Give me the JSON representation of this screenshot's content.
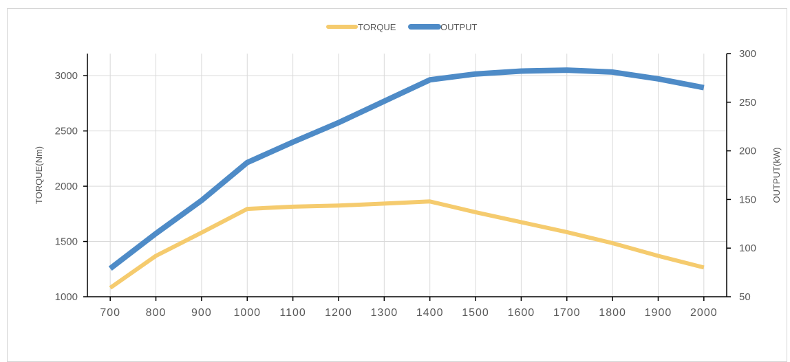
{
  "chart_data": {
    "type": "line",
    "x": [
      700,
      800,
      900,
      1000,
      1100,
      1200,
      1300,
      1400,
      1500,
      1600,
      1700,
      1800,
      1900,
      2000
    ],
    "xlim": [
      650,
      2050
    ],
    "xticks": [
      700,
      800,
      900,
      1000,
      1100,
      1200,
      1300,
      1400,
      1500,
      1600,
      1700,
      1800,
      1900,
      2000
    ],
    "xlabel": "",
    "y_left": {
      "label": "TORQUE(Nm)",
      "lim": [
        1000,
        3200
      ],
      "ticks": [
        1000,
        1500,
        2000,
        2500,
        3000
      ]
    },
    "y_right": {
      "label": "OUTPUT(kW)",
      "lim": [
        50,
        300
      ],
      "ticks": [
        50,
        100,
        150,
        200,
        250,
        300
      ]
    },
    "series": [
      {
        "name": "TORQUE",
        "axis": "left",
        "color": "#F5CB6E",
        "values": [
          1080,
          1370,
          1580,
          1795,
          1815,
          1825,
          1843,
          1862,
          1765,
          1675,
          1585,
          1485,
          1370,
          1265
        ]
      },
      {
        "name": "OUTPUT",
        "axis": "right",
        "color": "#4E8BC7",
        "values": [
          79,
          115,
          149,
          188,
          209,
          229,
          251,
          273,
          279,
          282,
          283,
          281,
          274,
          265
        ]
      }
    ],
    "grid": true,
    "legend_position": "top-center"
  }
}
